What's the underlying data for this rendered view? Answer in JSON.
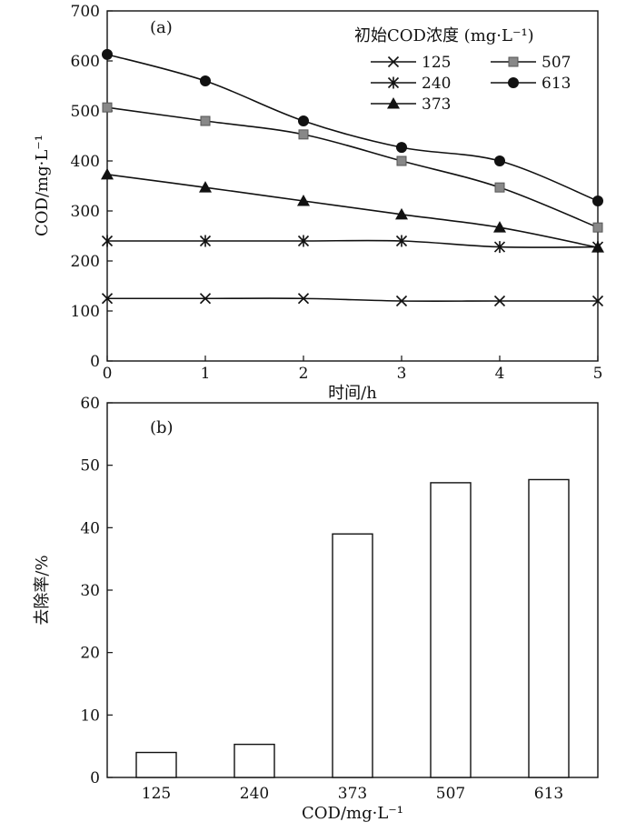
{
  "chart_data": [
    {
      "type": "line",
      "panel_label": "(a)",
      "xlabel": "时间/h",
      "ylabel": "COD/mg·L⁻¹",
      "xlim": [
        0,
        5
      ],
      "ylim": [
        0,
        700
      ],
      "x": [
        0,
        1,
        2,
        3,
        4,
        5
      ],
      "x_ticks": [
        "0",
        "1",
        "2",
        "3",
        "4",
        "5"
      ],
      "y_ticks": [
        "0",
        "100",
        "200",
        "300",
        "400",
        "500",
        "600",
        "700"
      ],
      "legend_title": "初始COD浓度 (mg·L⁻¹)",
      "legend_placement": "top-right",
      "grid": false,
      "series": [
        {
          "name": "125",
          "marker": "x",
          "values": [
            125,
            125,
            125,
            120,
            120,
            120
          ]
        },
        {
          "name": "240",
          "marker": "asterisk",
          "values": [
            240,
            240,
            240,
            240,
            228,
            228
          ]
        },
        {
          "name": "373",
          "marker": "triangle",
          "values": [
            373,
            347,
            320,
            293,
            267,
            227
          ]
        },
        {
          "name": "507",
          "marker": "square",
          "color": "#888888",
          "values": [
            507,
            480,
            453,
            400,
            347,
            267
          ]
        },
        {
          "name": "613",
          "marker": "circle",
          "values": [
            613,
            560,
            480,
            427,
            400,
            320
          ]
        }
      ]
    },
    {
      "type": "bar",
      "panel_label": "(b)",
      "xlabel": "COD/mg·L⁻¹",
      "ylabel": "去除率/%",
      "ylim": [
        0,
        60
      ],
      "y_ticks": [
        "0",
        "10",
        "20",
        "30",
        "40",
        "50",
        "60"
      ],
      "categories": [
        "125",
        "240",
        "373",
        "507",
        "613"
      ],
      "values": [
        4,
        5.3,
        39,
        47.2,
        47.7
      ],
      "grid": false
    }
  ]
}
